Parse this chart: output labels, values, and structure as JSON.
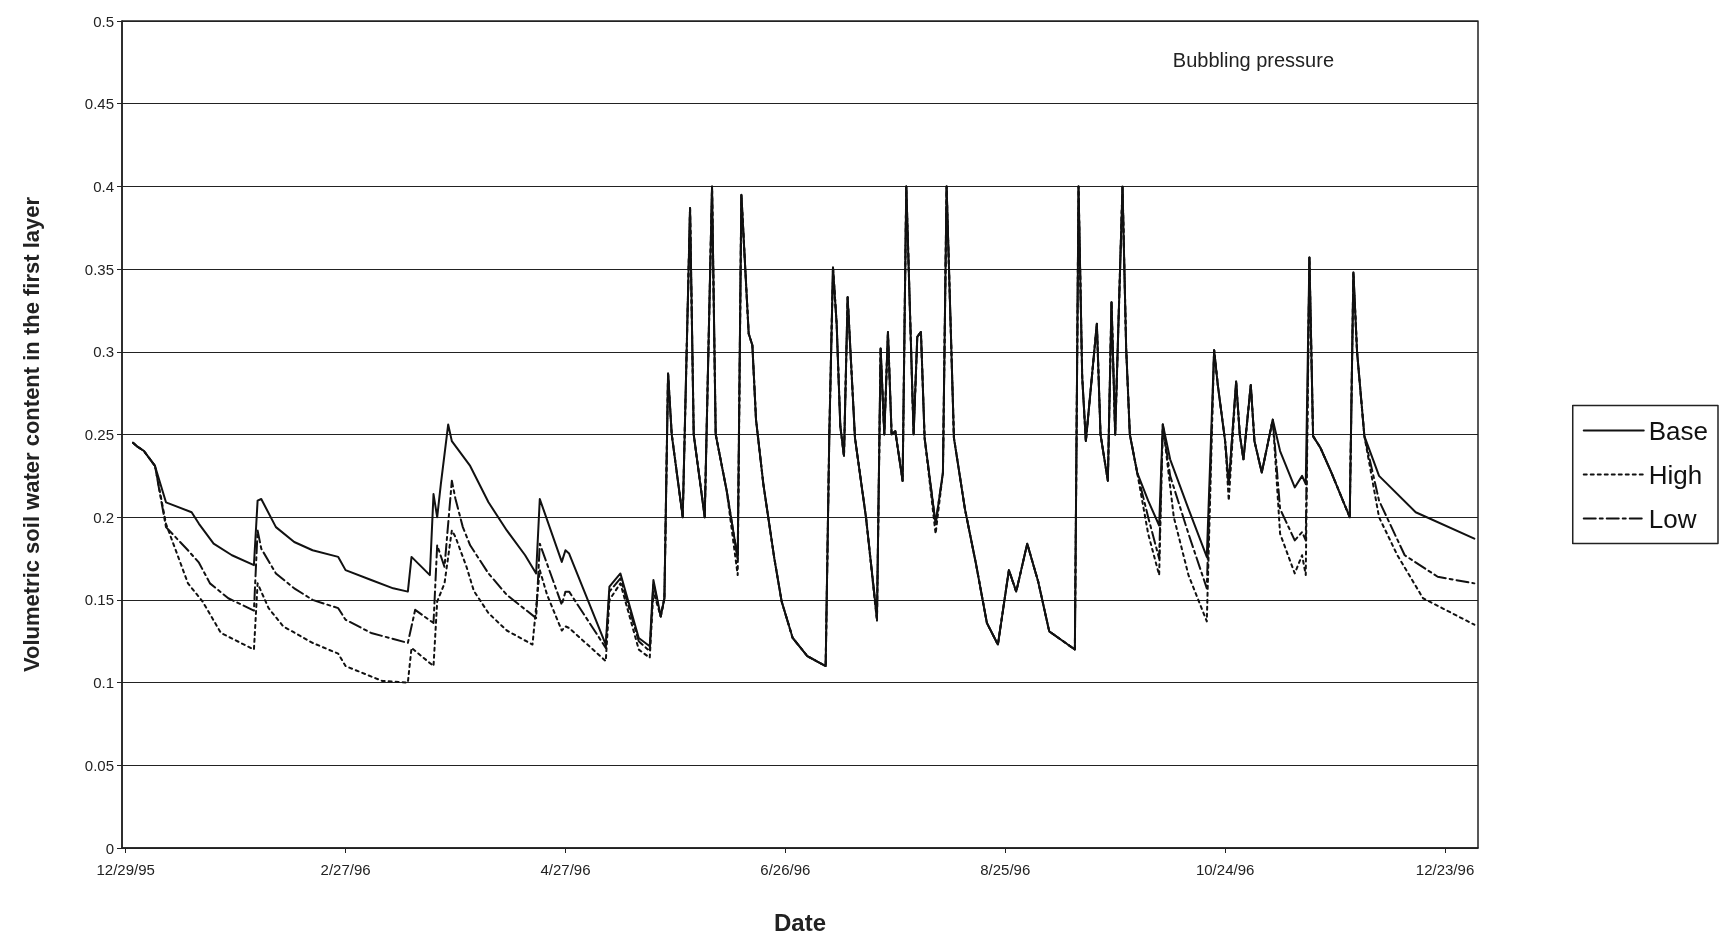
{
  "chart_data": {
    "type": "line",
    "xlabel": "Date",
    "ylabel": "Volumetric soil water content in the first layer",
    "annotations": [
      "Bubbling pressure"
    ],
    "xlim": [
      "1995-12-28",
      "1997-01-01"
    ],
    "xticks": [
      {
        "value": "1995-12-29",
        "label": "12/29/95"
      },
      {
        "value": "1996-02-27",
        "label": "2/27/96"
      },
      {
        "value": "1996-04-27",
        "label": "4/27/96"
      },
      {
        "value": "1996-06-26",
        "label": "6/26/96"
      },
      {
        "value": "1996-08-25",
        "label": "8/25/96"
      },
      {
        "value": "1996-10-24",
        "label": "10/24/96"
      },
      {
        "value": "1996-12-23",
        "label": "12/23/96"
      }
    ],
    "ylim": [
      0,
      0.5
    ],
    "yticks": [
      0,
      0.05,
      0.1,
      0.15,
      0.2,
      0.25,
      0.3,
      0.35,
      0.4,
      0.45,
      0.5
    ],
    "grid": "y",
    "legend": "right",
    "marker": "none",
    "series": [
      {
        "name": "Base",
        "color": "#111111",
        "line_style": "solid",
        "x": [
          "1995-12-31",
          "1996-01-01",
          "1996-01-03",
          "1996-01-06",
          "1996-01-09",
          "1996-01-16",
          "1996-01-18",
          "1996-01-22",
          "1996-01-27",
          "1996-02-02",
          "1996-02-03",
          "1996-02-04",
          "1996-02-08",
          "1996-02-13",
          "1996-02-18",
          "1996-02-25",
          "1996-02-27",
          "1996-03-05",
          "1996-03-11",
          "1996-03-15",
          "1996-03-16",
          "1996-03-21",
          "1996-03-22",
          "1996-03-23",
          "1996-03-24",
          "1996-03-26",
          "1996-03-27",
          "1996-04-01",
          "1996-04-06",
          "1996-04-11",
          "1996-04-16",
          "1996-04-19",
          "1996-04-20",
          "1996-04-26",
          "1996-04-27",
          "1996-04-28",
          "1996-05-08",
          "1996-05-09",
          "1996-05-12",
          "1996-05-17",
          "1996-05-20",
          "1996-05-21",
          "1996-05-23",
          "1996-05-24",
          "1996-05-25",
          "1996-05-26",
          "1996-05-29",
          "1996-05-31",
          "1996-06-01",
          "1996-06-04",
          "1996-06-06",
          "1996-06-07",
          "1996-06-10",
          "1996-06-13",
          "1996-06-14",
          "1996-06-16",
          "1996-06-17",
          "1996-06-18",
          "1996-06-20",
          "1996-06-23",
          "1996-06-25",
          "1996-06-28",
          "1996-07-02",
          "1996-07-07",
          "1996-07-08",
          "1996-07-09",
          "1996-07-10",
          "1996-07-11",
          "1996-07-12",
          "1996-07-13",
          "1996-07-15",
          "1996-07-18",
          "1996-07-21",
          "1996-07-22",
          "1996-07-23",
          "1996-07-24",
          "1996-07-25",
          "1996-07-26",
          "1996-07-28",
          "1996-07-29",
          "1996-07-31",
          "1996-08-01",
          "1996-08-02",
          "1996-08-03",
          "1996-08-06",
          "1996-08-08",
          "1996-08-09",
          "1996-08-11",
          "1996-08-14",
          "1996-08-17",
          "1996-08-20",
          "1996-08-23",
          "1996-08-26",
          "1996-08-28",
          "1996-08-31",
          "1996-09-03",
          "1996-09-06",
          "1996-09-13",
          "1996-09-14",
          "1996-09-15",
          "1996-09-16",
          "1996-09-19",
          "1996-09-20",
          "1996-09-22",
          "1996-09-23",
          "1996-09-24",
          "1996-09-26",
          "1996-09-27",
          "1996-09-28",
          "1996-09-30",
          "1996-10-03",
          "1996-10-06",
          "1996-10-07",
          "1996-10-09",
          "1996-10-14",
          "1996-10-19",
          "1996-10-21",
          "1996-10-22",
          "1996-10-24",
          "1996-10-25",
          "1996-10-27",
          "1996-10-28",
          "1996-10-29",
          "1996-10-31",
          "1996-11-01",
          "1996-11-03",
          "1996-11-06",
          "1996-11-08",
          "1996-11-12",
          "1996-11-14",
          "1996-11-15",
          "1996-11-16",
          "1996-11-17",
          "1996-11-19",
          "1996-11-22",
          "1996-11-27",
          "1996-11-28",
          "1996-11-29",
          "1996-12-01",
          "1996-12-05",
          "1996-12-15",
          "1996-12-31"
        ],
        "values": [
          0.245,
          0.243,
          0.24,
          0.231,
          0.209,
          0.203,
          0.196,
          0.184,
          0.177,
          0.171,
          0.21,
          0.211,
          0.194,
          0.185,
          0.18,
          0.176,
          0.168,
          0.162,
          0.157,
          0.155,
          0.176,
          0.165,
          0.214,
          0.2,
          0.22,
          0.256,
          0.246,
          0.231,
          0.209,
          0.192,
          0.177,
          0.166,
          0.211,
          0.173,
          0.18,
          0.178,
          0.123,
          0.158,
          0.166,
          0.127,
          0.122,
          0.162,
          0.14,
          0.151,
          0.287,
          0.25,
          0.2,
          0.387,
          0.25,
          0.2,
          0.4,
          0.25,
          0.216,
          0.175,
          0.395,
          0.311,
          0.304,
          0.259,
          0.22,
          0.175,
          0.149,
          0.127,
          0.116,
          0.11,
          0.25,
          0.351,
          0.317,
          0.255,
          0.237,
          0.333,
          0.248,
          0.2,
          0.139,
          0.302,
          0.25,
          0.312,
          0.25,
          0.252,
          0.222,
          0.4,
          0.25,
          0.309,
          0.312,
          0.248,
          0.196,
          0.227,
          0.4,
          0.248,
          0.205,
          0.172,
          0.136,
          0.123,
          0.168,
          0.155,
          0.184,
          0.161,
          0.131,
          0.12,
          0.4,
          0.285,
          0.246,
          0.317,
          0.25,
          0.222,
          0.33,
          0.25,
          0.4,
          0.302,
          0.25,
          0.227,
          0.21,
          0.195,
          0.256,
          0.235,
          0.205,
          0.176,
          0.301,
          0.28,
          0.246,
          0.22,
          0.282,
          0.25,
          0.235,
          0.28,
          0.246,
          0.227,
          0.259,
          0.24,
          0.218,
          0.225,
          0.22,
          0.357,
          0.249,
          0.242,
          0.227,
          0.2,
          0.348,
          0.3,
          0.249,
          0.225,
          0.203,
          0.187
        ]
      },
      {
        "name": "High",
        "color": "#111111",
        "line_style": "dotted",
        "x": [
          "1995-12-31",
          "1996-01-01",
          "1996-01-03",
          "1996-01-06",
          "1996-01-09",
          "1996-01-15",
          "1996-01-19",
          "1996-01-24",
          "1996-02-02",
          "1996-02-03",
          "1996-02-06",
          "1996-02-10",
          "1996-02-18",
          "1996-02-25",
          "1996-02-27",
          "1996-03-08",
          "1996-03-15",
          "1996-03-16",
          "1996-03-22",
          "1996-03-23",
          "1996-03-25",
          "1996-03-27",
          "1996-03-28",
          "1996-03-31",
          "1996-04-02",
          "1996-04-06",
          "1996-04-11",
          "1996-04-18",
          "1996-04-20",
          "1996-04-22",
          "1996-04-26",
          "1996-04-27",
          "1996-04-28",
          "1996-05-08",
          "1996-05-09",
          "1996-05-12",
          "1996-05-17",
          "1996-05-20",
          "1996-05-21",
          "1996-05-23",
          "1996-05-24",
          "1996-05-25",
          "1996-05-26",
          "1996-05-29",
          "1996-05-31",
          "1996-06-01",
          "1996-06-04",
          "1996-06-06",
          "1996-06-07",
          "1996-06-10",
          "1996-06-13",
          "1996-06-14",
          "1996-06-16",
          "1996-06-17",
          "1996-06-18",
          "1996-06-20",
          "1996-06-23",
          "1996-06-25",
          "1996-06-28",
          "1996-07-02",
          "1996-07-07",
          "1996-07-08",
          "1996-07-09",
          "1996-07-10",
          "1996-07-11",
          "1996-07-12",
          "1996-07-13",
          "1996-07-15",
          "1996-07-18",
          "1996-07-21",
          "1996-07-22",
          "1996-07-23",
          "1996-07-24",
          "1996-07-25",
          "1996-07-26",
          "1996-07-28",
          "1996-07-29",
          "1996-07-31",
          "1996-08-01",
          "1996-08-02",
          "1996-08-03",
          "1996-08-06",
          "1996-08-08",
          "1996-08-09",
          "1996-08-11",
          "1996-08-14",
          "1996-08-17",
          "1996-08-20",
          "1996-08-23",
          "1996-08-26",
          "1996-08-28",
          "1996-08-31",
          "1996-09-03",
          "1996-09-06",
          "1996-09-13",
          "1996-09-14",
          "1996-09-15",
          "1996-09-16",
          "1996-09-19",
          "1996-09-20",
          "1996-09-22",
          "1996-09-23",
          "1996-09-24",
          "1996-09-26",
          "1996-09-27",
          "1996-09-28",
          "1996-09-30",
          "1996-10-03",
          "1996-10-06",
          "1996-10-07",
          "1996-10-10",
          "1996-10-14",
          "1996-10-19",
          "1996-10-21",
          "1996-10-22",
          "1996-10-24",
          "1996-10-25",
          "1996-10-27",
          "1996-10-28",
          "1996-10-29",
          "1996-10-31",
          "1996-11-01",
          "1996-11-03",
          "1996-11-06",
          "1996-11-08",
          "1996-11-12",
          "1996-11-14",
          "1996-11-15",
          "1996-11-16",
          "1996-11-17",
          "1996-11-19",
          "1996-11-22",
          "1996-11-27",
          "1996-11-28",
          "1996-11-29",
          "1996-12-01",
          "1996-12-05",
          "1996-12-10",
          "1996-12-17",
          "1996-12-31"
        ],
        "values": [
          0.245,
          0.243,
          0.24,
          0.231,
          0.196,
          0.16,
          0.149,
          0.13,
          0.12,
          0.16,
          0.145,
          0.134,
          0.124,
          0.1175,
          0.11,
          0.101,
          0.1,
          0.121,
          0.11,
          0.149,
          0.16,
          0.192,
          0.188,
          0.17,
          0.1555,
          0.142,
          0.1315,
          0.123,
          0.168,
          0.153,
          0.1315,
          0.134,
          0.133,
          0.113,
          0.15,
          0.16,
          0.12,
          0.115,
          0.155,
          0.14,
          0.151,
          0.287,
          0.25,
          0.2,
          0.387,
          0.25,
          0.2,
          0.4,
          0.25,
          0.216,
          0.165,
          0.395,
          0.311,
          0.304,
          0.259,
          0.22,
          0.175,
          0.149,
          0.127,
          0.116,
          0.11,
          0.25,
          0.351,
          0.317,
          0.255,
          0.237,
          0.333,
          0.248,
          0.2,
          0.137,
          0.302,
          0.25,
          0.312,
          0.25,
          0.252,
          0.222,
          0.4,
          0.25,
          0.309,
          0.312,
          0.248,
          0.19,
          0.227,
          0.4,
          0.248,
          0.205,
          0.172,
          0.136,
          0.123,
          0.168,
          0.155,
          0.184,
          0.161,
          0.131,
          0.12,
          0.4,
          0.285,
          0.246,
          0.317,
          0.25,
          0.222,
          0.33,
          0.25,
          0.4,
          0.302,
          0.25,
          0.227,
          0.19,
          0.165,
          0.256,
          0.2,
          0.165,
          0.137,
          0.301,
          0.28,
          0.246,
          0.21,
          0.282,
          0.25,
          0.235,
          0.28,
          0.246,
          0.227,
          0.259,
          0.19,
          0.166,
          0.177,
          0.165,
          0.357,
          0.249,
          0.242,
          0.227,
          0.2,
          0.348,
          0.3,
          0.249,
          0.2,
          0.177,
          0.151,
          0.135
        ]
      },
      {
        "name": "Low",
        "color": "#111111",
        "line_style": "dashed",
        "x": [
          "1995-12-31",
          "1996-01-01",
          "1996-01-03",
          "1996-01-06",
          "1996-01-09",
          "1996-01-15",
          "1996-01-18",
          "1996-01-21",
          "1996-01-26",
          "1996-02-02",
          "1996-02-03",
          "1996-02-04",
          "1996-02-08",
          "1996-02-13",
          "1996-02-18",
          "1996-02-25",
          "1996-02-27",
          "1996-03-05",
          "1996-03-15",
          "1996-03-17",
          "1996-03-22",
          "1996-03-23",
          "1996-03-25",
          "1996-03-27",
          "1996-03-28",
          "1996-03-30",
          "1996-04-01",
          "1996-04-06",
          "1996-04-11",
          "1996-04-19",
          "1996-04-20",
          "1996-04-26",
          "1996-04-27",
          "1996-04-28",
          "1996-05-08",
          "1996-05-09",
          "1996-05-12",
          "1996-05-17",
          "1996-05-20",
          "1996-05-21",
          "1996-05-23",
          "1996-05-24",
          "1996-05-25",
          "1996-05-26",
          "1996-05-29",
          "1996-05-31",
          "1996-06-01",
          "1996-06-04",
          "1996-06-06",
          "1996-06-07",
          "1996-06-10",
          "1996-06-13",
          "1996-06-14",
          "1996-06-16",
          "1996-06-17",
          "1996-06-18",
          "1996-06-20",
          "1996-06-23",
          "1996-06-25",
          "1996-06-28",
          "1996-07-02",
          "1996-07-07",
          "1996-07-08",
          "1996-07-09",
          "1996-07-10",
          "1996-07-11",
          "1996-07-12",
          "1996-07-13",
          "1996-07-15",
          "1996-07-18",
          "1996-07-21",
          "1996-07-22",
          "1996-07-23",
          "1996-07-24",
          "1996-07-25",
          "1996-07-26",
          "1996-07-28",
          "1996-07-29",
          "1996-07-31",
          "1996-08-01",
          "1996-08-02",
          "1996-08-03",
          "1996-08-06",
          "1996-08-08",
          "1996-08-09",
          "1996-08-11",
          "1996-08-14",
          "1996-08-17",
          "1996-08-20",
          "1996-08-23",
          "1996-08-26",
          "1996-08-28",
          "1996-08-31",
          "1996-09-03",
          "1996-09-06",
          "1996-09-13",
          "1996-09-14",
          "1996-09-15",
          "1996-09-16",
          "1996-09-19",
          "1996-09-20",
          "1996-09-22",
          "1996-09-23",
          "1996-09-24",
          "1996-09-26",
          "1996-09-27",
          "1996-09-28",
          "1996-09-30",
          "1996-10-03",
          "1996-10-06",
          "1996-10-07",
          "1996-10-09",
          "1996-10-14",
          "1996-10-19",
          "1996-10-21",
          "1996-10-22",
          "1996-10-24",
          "1996-10-25",
          "1996-10-27",
          "1996-10-28",
          "1996-10-29",
          "1996-10-31",
          "1996-11-01",
          "1996-11-03",
          "1996-11-06",
          "1996-11-08",
          "1996-11-12",
          "1996-11-14",
          "1996-11-15",
          "1996-11-16",
          "1996-11-17",
          "1996-11-19",
          "1996-11-22",
          "1996-11-27",
          "1996-11-28",
          "1996-11-29",
          "1996-12-01",
          "1996-12-05",
          "1996-12-12",
          "1996-12-21",
          "1996-12-31"
        ],
        "values": [
          0.245,
          0.243,
          0.24,
          0.231,
          0.194,
          0.18,
          0.1725,
          0.16,
          0.151,
          0.1435,
          0.192,
          0.181,
          0.166,
          0.157,
          0.15,
          0.145,
          0.138,
          0.13,
          0.124,
          0.144,
          0.136,
          0.183,
          0.17,
          0.222,
          0.211,
          0.194,
          0.183,
          0.166,
          0.153,
          0.139,
          0.184,
          0.147,
          0.155,
          0.155,
          0.121,
          0.155,
          0.163,
          0.125,
          0.119,
          0.16,
          0.14,
          0.151,
          0.287,
          0.25,
          0.2,
          0.387,
          0.25,
          0.2,
          0.4,
          0.25,
          0.216,
          0.175,
          0.395,
          0.311,
          0.304,
          0.259,
          0.22,
          0.175,
          0.149,
          0.127,
          0.116,
          0.11,
          0.25,
          0.351,
          0.317,
          0.255,
          0.237,
          0.333,
          0.248,
          0.2,
          0.139,
          0.302,
          0.25,
          0.312,
          0.25,
          0.252,
          0.222,
          0.4,
          0.25,
          0.309,
          0.312,
          0.248,
          0.196,
          0.227,
          0.4,
          0.248,
          0.205,
          0.172,
          0.136,
          0.123,
          0.168,
          0.155,
          0.184,
          0.161,
          0.131,
          0.12,
          0.4,
          0.285,
          0.246,
          0.317,
          0.25,
          0.222,
          0.33,
          0.25,
          0.4,
          0.302,
          0.25,
          0.227,
          0.2,
          0.175,
          0.256,
          0.225,
          0.19,
          0.157,
          0.301,
          0.28,
          0.246,
          0.22,
          0.282,
          0.25,
          0.235,
          0.28,
          0.246,
          0.227,
          0.259,
          0.205,
          0.186,
          0.191,
          0.186,
          0.357,
          0.249,
          0.242,
          0.227,
          0.2,
          0.348,
          0.3,
          0.249,
          0.21,
          0.177,
          0.164,
          0.16
        ]
      }
    ]
  }
}
